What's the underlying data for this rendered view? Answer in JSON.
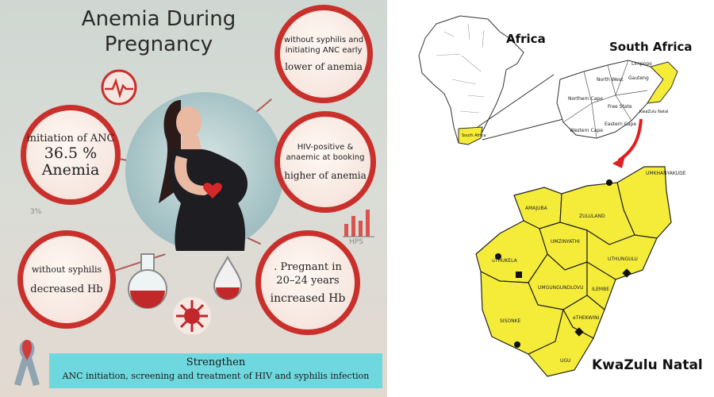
{
  "infographic": {
    "title_line1": "Anemia During",
    "title_line2": "Pregnancy",
    "bubble_top_right": {
      "line1": "without syphilis  and",
      "line2": "initiating ANC early",
      "line3": "lower of anemia"
    },
    "bubble_left_upper": {
      "line1": "initiation of ANC",
      "line2": "36.5 %",
      "line3": "Anemia"
    },
    "bubble_right_mid": {
      "line1": "HIV-positive &",
      "line2": "anaemic at booking",
      "line3": "higher of anemia"
    },
    "bubble_left_lower": {
      "line1": "without syphilis",
      "line2": "decreased Hb"
    },
    "bubble_right_lower": {
      "line1": ". Pregnant in",
      "line2": "20–24 years",
      "line3": "increased Hb"
    },
    "faint_chart_label": "HPS",
    "faint_percent_label": "3%",
    "banner_line1": "Strengthen",
    "banner_line2": "ANC initiation, screening and treatment of HIV and syphilis infection",
    "colors": {
      "bubble_border": "#c9302c",
      "banner": "#6fd8df",
      "blood": "#c0282a"
    }
  },
  "maps": {
    "africa_label": "Africa",
    "south_africa_label": "South Africa",
    "kzn_label": "KwaZulu Natal",
    "south_africa_tag": "South Africa",
    "kzn_small_tag": "KwaZulu Natal",
    "sa_provinces": [
      "Northern Cape",
      "Free State",
      "North West",
      "Eastern Cape",
      "Western Cape",
      "Limpopo",
      "Gauteng"
    ],
    "districts": [
      "UMKHANYAKUDE",
      "AMAJUBA",
      "ZULULAND",
      "UMZINYATHI",
      "uTHUKELA",
      "UTHUNGULU",
      "UMGUNGUNDLOVU",
      "ILEMBE",
      "eTHEKWINI",
      "SISONKE",
      "UGU"
    ],
    "colors": {
      "highlight": "#f5ec3a",
      "outline": "#222222",
      "arrow": "#e02020"
    }
  }
}
